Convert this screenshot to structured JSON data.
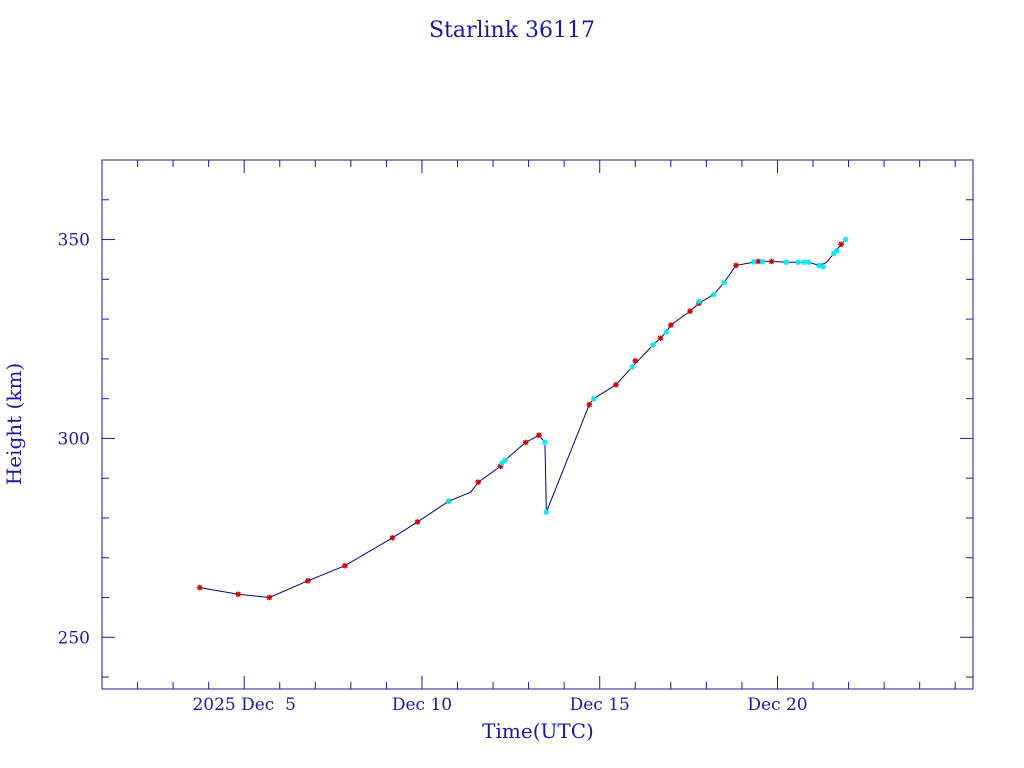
{
  "chart_data": {
    "type": "scatter",
    "title": "Starlink 36117",
    "xlabel": "Time(UTC)",
    "ylabel": "Height (km)",
    "x_is_date": true,
    "xlim": [
      "2025-12-01T00:00",
      "2025-12-25T12:00"
    ],
    "ylim": [
      237,
      370
    ],
    "x_ticks": [
      {
        "date": "2025-12-05T00:00",
        "label": "2025 Dec  5"
      },
      {
        "date": "2025-12-10T00:00",
        "label": "Dec 10"
      },
      {
        "date": "2025-12-15T00:00",
        "label": "Dec 15"
      },
      {
        "date": "2025-12-20T00:00",
        "label": "Dec 20"
      }
    ],
    "y_ticks": [
      250,
      300,
      350
    ],
    "grid": false,
    "colors": {
      "axes": "#1a1aa0",
      "line": "#000080",
      "red_points": "#cc0000",
      "cyan_points": "#00e5ee"
    },
    "line": [
      [
        "2025-12-03T18:00",
        262.5
      ],
      [
        "2025-12-04T20:00",
        260.8
      ],
      [
        "2025-12-05T17:00",
        260.0
      ],
      [
        "2025-12-06T19:00",
        264.2
      ],
      [
        "2025-12-07T20:00",
        268.0
      ],
      [
        "2025-12-09T04:00",
        275.0
      ],
      [
        "2025-12-09T21:00",
        279.0
      ],
      [
        "2025-12-10T18:00",
        284.2
      ],
      [
        "2025-12-11T09:00",
        286.5
      ],
      [
        "2025-12-11T14:00",
        289.0
      ],
      [
        "2025-12-12T05:00",
        293.0
      ],
      [
        "2025-12-12T08:00",
        294.5
      ],
      [
        "2025-12-12T22:00",
        299.0
      ],
      [
        "2025-12-13T07:00",
        300.8
      ],
      [
        "2025-12-13T11:00",
        299.0
      ],
      [
        "2025-12-13T12:00",
        281.5
      ],
      [
        "2025-12-14T17:00",
        308.5
      ],
      [
        "2025-12-14T20:00",
        310.0
      ],
      [
        "2025-12-15T11:00",
        313.5
      ],
      [
        "2025-12-15T22:00",
        318.0
      ],
      [
        "2025-12-16T12:00",
        323.5
      ],
      [
        "2025-12-16T17:00",
        325.2
      ],
      [
        "2025-12-16T21:00",
        326.8
      ],
      [
        "2025-12-17T00:00",
        328.5
      ],
      [
        "2025-12-17T13:00",
        332.0
      ],
      [
        "2025-12-17T19:00",
        334.0
      ],
      [
        "2025-12-18T05:00",
        336.2
      ],
      [
        "2025-12-18T12:00",
        339.2
      ],
      [
        "2025-12-18T20:00",
        343.5
      ],
      [
        "2025-12-19T11:00",
        344.5
      ],
      [
        "2025-12-19T20:00",
        344.5
      ],
      [
        "2025-12-20T06:00",
        344.3
      ],
      [
        "2025-12-20T12:00",
        344.3
      ],
      [
        "2025-12-20T21:00",
        344.3
      ],
      [
        "2025-12-21T04:00",
        343.5
      ],
      [
        "2025-12-21T09:00",
        344.2
      ],
      [
        "2025-12-21T14:00",
        346.5
      ],
      [
        "2025-12-21T19:00",
        348.8
      ],
      [
        "2025-12-21T22:00",
        350.0
      ]
    ],
    "series": [
      {
        "marker": "red",
        "points": [
          [
            "2025-12-03T18:00",
            262.5
          ],
          [
            "2025-12-04T20:00",
            260.8
          ],
          [
            "2025-12-05T17:00",
            260.0
          ],
          [
            "2025-12-06T19:00",
            264.2
          ],
          [
            "2025-12-07T20:00",
            268.0
          ],
          [
            "2025-12-09T04:00",
            275.0
          ],
          [
            "2025-12-09T21:00",
            279.0
          ],
          [
            "2025-12-10T18:00",
            284.2
          ],
          [
            "2025-12-11T14:00",
            289.0
          ],
          [
            "2025-12-12T05:00",
            293.0
          ],
          [
            "2025-12-12T22:00",
            299.0
          ],
          [
            "2025-12-13T07:00",
            300.8
          ],
          [
            "2025-12-14T17:00",
            308.5
          ],
          [
            "2025-12-15T11:00",
            313.5
          ],
          [
            "2025-12-16T00:00",
            319.5
          ],
          [
            "2025-12-16T17:00",
            325.2
          ],
          [
            "2025-12-17T00:00",
            328.5
          ],
          [
            "2025-12-17T13:00",
            332.0
          ],
          [
            "2025-12-17T19:00",
            334.0
          ],
          [
            "2025-12-18T20:00",
            343.5
          ],
          [
            "2025-12-19T11:00",
            344.5
          ],
          [
            "2025-12-19T20:00",
            344.5
          ],
          [
            "2025-12-21T19:00",
            348.8
          ]
        ]
      },
      {
        "marker": "cyan",
        "points": [
          [
            "2025-12-10T18:00",
            284.2
          ],
          [
            "2025-12-12T08:00",
            294.5
          ],
          [
            "2025-12-12T06:00",
            293.8
          ],
          [
            "2025-12-13T11:00",
            299.0
          ],
          [
            "2025-12-13T12:00",
            281.5
          ],
          [
            "2025-12-14T20:00",
            310.0
          ],
          [
            "2025-12-15T22:00",
            318.0
          ],
          [
            "2025-12-16T12:00",
            323.5
          ],
          [
            "2025-12-16T21:00",
            326.8
          ],
          [
            "2025-12-17T19:00",
            334.5
          ],
          [
            "2025-12-18T05:00",
            336.2
          ],
          [
            "2025-12-18T12:00",
            339.2
          ],
          [
            "2025-12-19T08:00",
            344.4
          ],
          [
            "2025-12-19T14:00",
            344.4
          ],
          [
            "2025-12-20T06:00",
            344.3
          ],
          [
            "2025-12-20T14:00",
            344.3
          ],
          [
            "2025-12-20T18:00",
            344.3
          ],
          [
            "2025-12-20T21:00",
            344.3
          ],
          [
            "2025-12-21T04:00",
            343.5
          ],
          [
            "2025-12-21T07:00",
            343.2
          ],
          [
            "2025-12-21T14:00",
            346.5
          ],
          [
            "2025-12-21T16:00",
            347.2
          ],
          [
            "2025-12-21T22:00",
            350.0
          ]
        ]
      }
    ]
  }
}
